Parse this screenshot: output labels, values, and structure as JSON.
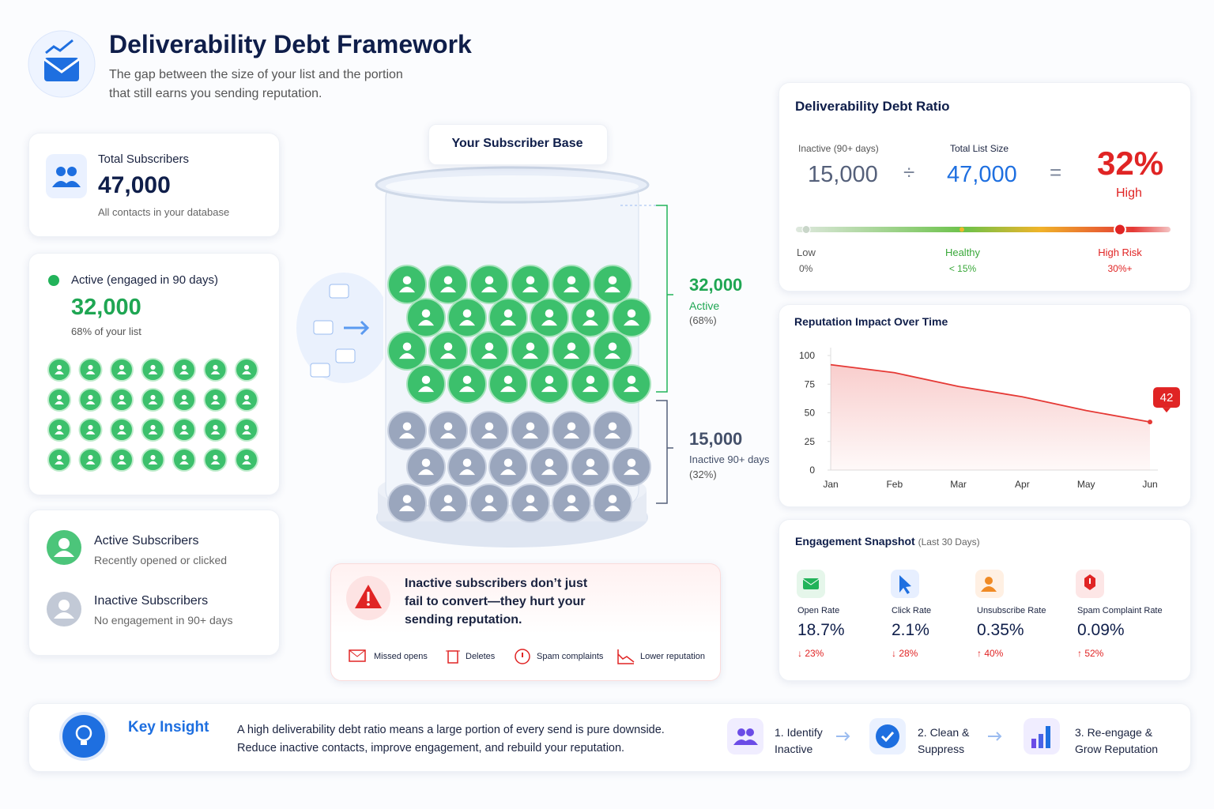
{
  "header": {
    "title": "Deliverability Debt Framework",
    "subtitle": "The gap between the size of your list and the portion that still earns you sending reputation."
  },
  "total_card": {
    "label": "Total Subscribers",
    "value": "47,000",
    "note": "All contacts in your database"
  },
  "active_card": {
    "label": "Active (engaged in 90 days)",
    "value": "32,000",
    "note": "68% of your list"
  },
  "legend": [
    {
      "title": "Active Subscribers",
      "note": "Recently opened or clicked"
    },
    {
      "title": "Inactive Subscribers",
      "note": "No engagement in 90+ days"
    }
  ],
  "jar": {
    "title": "Your Subscriber Base",
    "segments": [
      {
        "value": "32,000",
        "label": "Active",
        "share": "(68%)"
      },
      {
        "value": "15,000",
        "label": "Inactive 90+ days",
        "share": "(32%)"
      }
    ]
  },
  "warning": {
    "text": "Inactive subscribers don’t just fail to convert—they hurt your sending reputation.",
    "effects": [
      "Missed opens",
      "Deletes",
      "Spam complaints",
      "Lower reputation"
    ]
  },
  "ratio": {
    "title": "Deliverability Debt Ratio",
    "numerator_label": "Inactive (90+ days)",
    "numerator": "15,000",
    "operator": "÷",
    "denominator_label": "Total List Size",
    "denominator": "47,000",
    "equals": "=",
    "result": "32%",
    "result_label": "High",
    "scale": [
      {
        "label": "Low",
        "value": "0%"
      },
      {
        "label": "Healthy",
        "value": "< 15%"
      },
      {
        "label": "High Risk",
        "value": "30%+"
      }
    ]
  },
  "reputation_chart": {
    "type": "line",
    "title": "Reputation Impact Over Time",
    "categories": [
      "Jan",
      "Feb",
      "Mar",
      "Apr",
      "May",
      "Jun"
    ],
    "values": [
      92,
      85,
      73,
      64,
      52,
      42
    ],
    "color": "#e53935",
    "ylim": [
      0,
      100
    ],
    "yticks": [
      0,
      25,
      50,
      75,
      100
    ]
  },
  "engagement": {
    "title": "Engagement Snapshot",
    "period": "(Last 30 Days)",
    "metrics": [
      {
        "label": "Open Rate",
        "value": "18.7%",
        "change": "↓ 23%"
      },
      {
        "label": "Click Rate",
        "value": "2.1%",
        "change": "↓ 28%"
      },
      {
        "label": "Unsubscribe Rate",
        "value": "0.35%",
        "change": "↑ 40%"
      },
      {
        "label": "Spam Complaint Rate",
        "value": "0.09%",
        "change": "↑ 52%"
      }
    ]
  },
  "insight": {
    "title": "Key Insight",
    "text": "A high deliverability debt ratio means a large portion of every send is pure downside. Reduce inactive contacts, improve engagement, and rebuild your reputation.",
    "steps": [
      "1. Identify Inactive",
      "2. Clean & Suppress",
      "3. Re-engage & Grow Reputation"
    ]
  }
}
